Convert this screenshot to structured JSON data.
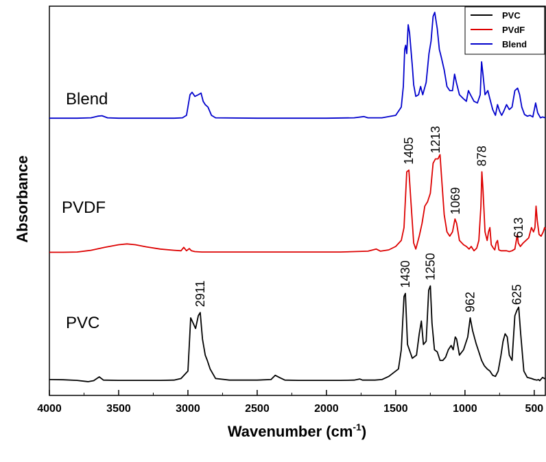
{
  "chart_data": {
    "type": "line",
    "xlabel": "Wavenumber (cm",
    "xlabel_sup": "-1",
    "xlabel_close": ")",
    "ylabel": "Absorbance",
    "xlim": [
      4000,
      420
    ],
    "x_reversed": true,
    "x_ticks": [
      4000,
      3500,
      3000,
      2500,
      2000,
      1500,
      1000,
      500
    ],
    "y_ticks": "none",
    "grid": false,
    "legend": {
      "placement": "top-right",
      "entries": [
        {
          "label": "PVC",
          "color": "#000000"
        },
        {
          "label": "PVdF",
          "color": "#dd0000"
        },
        {
          "label": "Blend",
          "color": "#0000cc"
        }
      ]
    },
    "series": [
      {
        "name": "PVC",
        "color": "#000000",
        "trace_label": "PVC",
        "points": [
          [
            4000,
            0.02
          ],
          [
            3900,
            0.018
          ],
          [
            3800,
            0.012
          ],
          [
            3720,
            0.0
          ],
          [
            3680,
            0.01
          ],
          [
            3640,
            0.045
          ],
          [
            3610,
            0.015
          ],
          [
            3500,
            0.012
          ],
          [
            3400,
            0.012
          ],
          [
            3300,
            0.012
          ],
          [
            3200,
            0.012
          ],
          [
            3100,
            0.015
          ],
          [
            3050,
            0.03
          ],
          [
            3000,
            0.1
          ],
          [
            2980,
            0.6
          ],
          [
            2962,
            0.55
          ],
          [
            2945,
            0.5
          ],
          [
            2925,
            0.62
          ],
          [
            2911,
            0.65
          ],
          [
            2895,
            0.4
          ],
          [
            2875,
            0.25
          ],
          [
            2860,
            0.2
          ],
          [
            2840,
            0.12
          ],
          [
            2800,
            0.03
          ],
          [
            2700,
            0.015
          ],
          [
            2500,
            0.015
          ],
          [
            2400,
            0.02
          ],
          [
            2370,
            0.06
          ],
          [
            2340,
            0.04
          ],
          [
            2300,
            0.015
          ],
          [
            2200,
            0.012
          ],
          [
            2100,
            0.012
          ],
          [
            2000,
            0.012
          ],
          [
            1900,
            0.012
          ],
          [
            1800,
            0.015
          ],
          [
            1760,
            0.025
          ],
          [
            1740,
            0.015
          ],
          [
            1650,
            0.015
          ],
          [
            1600,
            0.02
          ],
          [
            1550,
            0.05
          ],
          [
            1480,
            0.12
          ],
          [
            1460,
            0.3
          ],
          [
            1440,
            0.8
          ],
          [
            1430,
            0.83
          ],
          [
            1415,
            0.35
          ],
          [
            1380,
            0.22
          ],
          [
            1350,
            0.25
          ],
          [
            1330,
            0.45
          ],
          [
            1315,
            0.57
          ],
          [
            1300,
            0.35
          ],
          [
            1280,
            0.38
          ],
          [
            1262,
            0.86
          ],
          [
            1250,
            0.9
          ],
          [
            1238,
            0.55
          ],
          [
            1220,
            0.3
          ],
          [
            1200,
            0.28
          ],
          [
            1180,
            0.2
          ],
          [
            1160,
            0.2
          ],
          [
            1140,
            0.23
          ],
          [
            1120,
            0.3
          ],
          [
            1100,
            0.34
          ],
          [
            1085,
            0.3
          ],
          [
            1070,
            0.42
          ],
          [
            1060,
            0.4
          ],
          [
            1040,
            0.25
          ],
          [
            1010,
            0.3
          ],
          [
            980,
            0.42
          ],
          [
            962,
            0.6
          ],
          [
            945,
            0.48
          ],
          [
            920,
            0.36
          ],
          [
            900,
            0.28
          ],
          [
            880,
            0.2
          ],
          [
            860,
            0.15
          ],
          [
            840,
            0.12
          ],
          [
            820,
            0.1
          ],
          [
            800,
            0.06
          ],
          [
            780,
            0.05
          ],
          [
            760,
            0.1
          ],
          [
            740,
            0.25
          ],
          [
            725,
            0.38
          ],
          [
            710,
            0.45
          ],
          [
            695,
            0.42
          ],
          [
            680,
            0.25
          ],
          [
            660,
            0.2
          ],
          [
            640,
            0.62
          ],
          [
            625,
            0.67
          ],
          [
            612,
            0.7
          ],
          [
            598,
            0.45
          ],
          [
            575,
            0.1
          ],
          [
            550,
            0.04
          ],
          [
            520,
            0.03
          ],
          [
            500,
            0.02
          ],
          [
            480,
            0.015
          ],
          [
            470,
            0.02
          ],
          [
            460,
            0.01
          ],
          [
            440,
            0.04
          ],
          [
            420,
            0.025
          ]
        ]
      },
      {
        "name": "PVdF",
        "color": "#dd0000",
        "trace_label": "PVDF",
        "points": [
          [
            4000,
            0.012
          ],
          [
            3900,
            0.012
          ],
          [
            3800,
            0.015
          ],
          [
            3700,
            0.035
          ],
          [
            3600,
            0.07
          ],
          [
            3500,
            0.1
          ],
          [
            3440,
            0.11
          ],
          [
            3380,
            0.1
          ],
          [
            3300,
            0.075
          ],
          [
            3200,
            0.05
          ],
          [
            3100,
            0.035
          ],
          [
            3050,
            0.03
          ],
          [
            3030,
            0.07
          ],
          [
            3010,
            0.03
          ],
          [
            2990,
            0.055
          ],
          [
            2975,
            0.03
          ],
          [
            2950,
            0.02
          ],
          [
            2900,
            0.015
          ],
          [
            2800,
            0.015
          ],
          [
            2500,
            0.015
          ],
          [
            2000,
            0.015
          ],
          [
            1900,
            0.015
          ],
          [
            1700,
            0.025
          ],
          [
            1640,
            0.05
          ],
          [
            1610,
            0.025
          ],
          [
            1550,
            0.04
          ],
          [
            1500,
            0.08
          ],
          [
            1460,
            0.15
          ],
          [
            1440,
            0.3
          ],
          [
            1420,
            0.95
          ],
          [
            1405,
            0.97
          ],
          [
            1390,
            0.6
          ],
          [
            1370,
            0.12
          ],
          [
            1355,
            0.05
          ],
          [
            1330,
            0.2
          ],
          [
            1310,
            0.35
          ],
          [
            1290,
            0.55
          ],
          [
            1270,
            0.6
          ],
          [
            1250,
            0.7
          ],
          [
            1230,
            1.05
          ],
          [
            1213,
            1.1
          ],
          [
            1195,
            1.1
          ],
          [
            1180,
            1.15
          ],
          [
            1165,
            0.8
          ],
          [
            1150,
            0.45
          ],
          [
            1130,
            0.25
          ],
          [
            1110,
            0.2
          ],
          [
            1090,
            0.25
          ],
          [
            1072,
            0.4
          ],
          [
            1060,
            0.35
          ],
          [
            1040,
            0.15
          ],
          [
            1010,
            0.1
          ],
          [
            990,
            0.08
          ],
          [
            970,
            0.05
          ],
          [
            955,
            0.08
          ],
          [
            935,
            0.03
          ],
          [
            915,
            0.06
          ],
          [
            900,
            0.15
          ],
          [
            885,
            0.55
          ],
          [
            878,
            0.95
          ],
          [
            870,
            0.75
          ],
          [
            855,
            0.25
          ],
          [
            840,
            0.15
          ],
          [
            830,
            0.25
          ],
          [
            820,
            0.3
          ],
          [
            810,
            0.1
          ],
          [
            795,
            0.06
          ],
          [
            785,
            0.04
          ],
          [
            775,
            0.12
          ],
          [
            765,
            0.15
          ],
          [
            755,
            0.04
          ],
          [
            740,
            0.03
          ],
          [
            720,
            0.03
          ],
          [
            700,
            0.03
          ],
          [
            680,
            0.02
          ],
          [
            660,
            0.03
          ],
          [
            640,
            0.05
          ],
          [
            622,
            0.22
          ],
          [
            615,
            0.12
          ],
          [
            600,
            0.08
          ],
          [
            580,
            0.12
          ],
          [
            560,
            0.15
          ],
          [
            540,
            0.18
          ],
          [
            520,
            0.3
          ],
          [
            505,
            0.25
          ],
          [
            495,
            0.3
          ],
          [
            487,
            0.55
          ],
          [
            478,
            0.38
          ],
          [
            465,
            0.22
          ],
          [
            450,
            0.2
          ],
          [
            435,
            0.25
          ],
          [
            425,
            0.3
          ],
          [
            420,
            0.28
          ]
        ]
      },
      {
        "name": "Blend",
        "color": "#0000cc",
        "trace_label": "Blend",
        "points": [
          [
            4000,
            0.015
          ],
          [
            3900,
            0.015
          ],
          [
            3800,
            0.015
          ],
          [
            3700,
            0.02
          ],
          [
            3650,
            0.04
          ],
          [
            3620,
            0.045
          ],
          [
            3580,
            0.02
          ],
          [
            3500,
            0.015
          ],
          [
            3300,
            0.015
          ],
          [
            3100,
            0.015
          ],
          [
            3040,
            0.02
          ],
          [
            3010,
            0.05
          ],
          [
            2985,
            0.3
          ],
          [
            2970,
            0.33
          ],
          [
            2950,
            0.28
          ],
          [
            2925,
            0.3
          ],
          [
            2905,
            0.32
          ],
          [
            2890,
            0.22
          ],
          [
            2875,
            0.18
          ],
          [
            2855,
            0.15
          ],
          [
            2830,
            0.05
          ],
          [
            2800,
            0.02
          ],
          [
            2500,
            0.015
          ],
          [
            2000,
            0.015
          ],
          [
            1800,
            0.02
          ],
          [
            1730,
            0.035
          ],
          [
            1700,
            0.02
          ],
          [
            1600,
            0.02
          ],
          [
            1500,
            0.05
          ],
          [
            1460,
            0.15
          ],
          [
            1445,
            0.4
          ],
          [
            1435,
            0.85
          ],
          [
            1428,
            0.9
          ],
          [
            1420,
            0.8
          ],
          [
            1410,
            1.15
          ],
          [
            1400,
            1.05
          ],
          [
            1390,
            0.85
          ],
          [
            1380,
            0.65
          ],
          [
            1370,
            0.42
          ],
          [
            1355,
            0.28
          ],
          [
            1335,
            0.3
          ],
          [
            1320,
            0.4
          ],
          [
            1305,
            0.3
          ],
          [
            1280,
            0.45
          ],
          [
            1260,
            0.8
          ],
          [
            1245,
            0.95
          ],
          [
            1230,
            1.25
          ],
          [
            1218,
            1.3
          ],
          [
            1200,
            1.1
          ],
          [
            1185,
            0.85
          ],
          [
            1170,
            0.75
          ],
          [
            1150,
            0.6
          ],
          [
            1130,
            0.4
          ],
          [
            1110,
            0.35
          ],
          [
            1090,
            0.35
          ],
          [
            1075,
            0.55
          ],
          [
            1062,
            0.45
          ],
          [
            1040,
            0.3
          ],
          [
            1010,
            0.25
          ],
          [
            990,
            0.22
          ],
          [
            975,
            0.35
          ],
          [
            960,
            0.3
          ],
          [
            935,
            0.22
          ],
          [
            910,
            0.2
          ],
          [
            890,
            0.3
          ],
          [
            880,
            0.7
          ],
          [
            870,
            0.55
          ],
          [
            855,
            0.3
          ],
          [
            835,
            0.35
          ],
          [
            820,
            0.25
          ],
          [
            800,
            0.12
          ],
          [
            780,
            0.05
          ],
          [
            765,
            0.18
          ],
          [
            750,
            0.1
          ],
          [
            735,
            0.05
          ],
          [
            720,
            0.1
          ],
          [
            700,
            0.18
          ],
          [
            680,
            0.12
          ],
          [
            660,
            0.15
          ],
          [
            640,
            0.35
          ],
          [
            620,
            0.38
          ],
          [
            605,
            0.3
          ],
          [
            590,
            0.15
          ],
          [
            570,
            0.06
          ],
          [
            550,
            0.04
          ],
          [
            530,
            0.05
          ],
          [
            510,
            0.03
          ],
          [
            490,
            0.2
          ],
          [
            475,
            0.08
          ],
          [
            455,
            0.02
          ],
          [
            440,
            0.03
          ],
          [
            420,
            0.02
          ]
        ]
      }
    ],
    "annotations": [
      {
        "text": "2911",
        "series": "PVC",
        "x": 2911
      },
      {
        "text": "1430",
        "series": "PVC",
        "x": 1430
      },
      {
        "text": "1250",
        "series": "PVC",
        "x": 1250
      },
      {
        "text": "962",
        "series": "PVC",
        "x": 962
      },
      {
        "text": "625",
        "series": "PVC",
        "x": 625
      },
      {
        "text": "1405",
        "series": "PVdF",
        "x": 1405
      },
      {
        "text": "1213",
        "series": "PVdF",
        "x": 1213
      },
      {
        "text": "1069",
        "series": "PVdF",
        "x": 1069
      },
      {
        "text": "878",
        "series": "PVdF",
        "x": 878
      },
      {
        "text": "613",
        "series": "PVdF",
        "x": 613
      }
    ]
  }
}
